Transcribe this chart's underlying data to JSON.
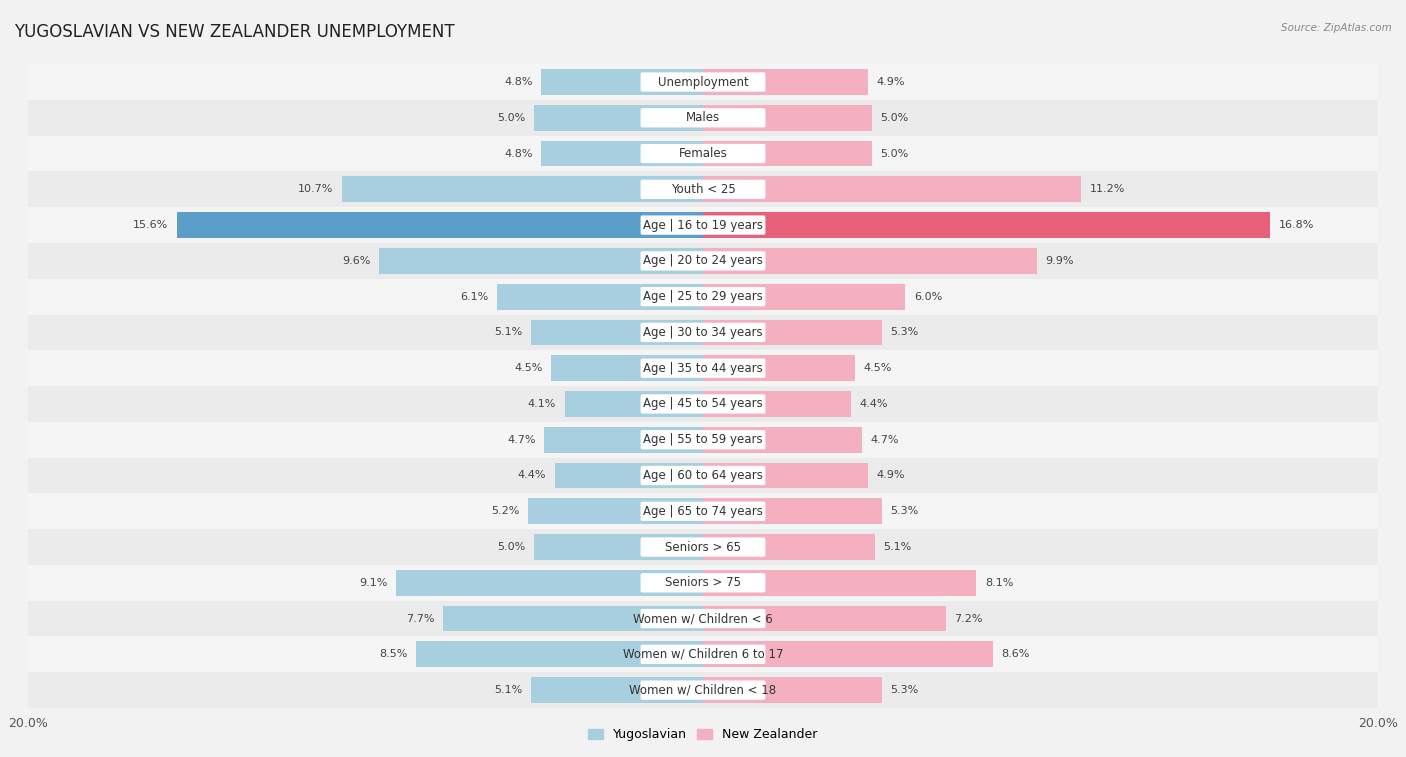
{
  "title": "YUGOSLAVIAN VS NEW ZEALANDER UNEMPLOYMENT",
  "source": "Source: ZipAtlas.com",
  "categories": [
    "Unemployment",
    "Males",
    "Females",
    "Youth < 25",
    "Age | 16 to 19 years",
    "Age | 20 to 24 years",
    "Age | 25 to 29 years",
    "Age | 30 to 34 years",
    "Age | 35 to 44 years",
    "Age | 45 to 54 years",
    "Age | 55 to 59 years",
    "Age | 60 to 64 years",
    "Age | 65 to 74 years",
    "Seniors > 65",
    "Seniors > 75",
    "Women w/ Children < 6",
    "Women w/ Children 6 to 17",
    "Women w/ Children < 18"
  ],
  "yugoslav_values": [
    4.8,
    5.0,
    4.8,
    10.7,
    15.6,
    9.6,
    6.1,
    5.1,
    4.5,
    4.1,
    4.7,
    4.4,
    5.2,
    5.0,
    9.1,
    7.7,
    8.5,
    5.1
  ],
  "nz_values": [
    4.9,
    5.0,
    5.0,
    11.2,
    16.8,
    9.9,
    6.0,
    5.3,
    4.5,
    4.4,
    4.7,
    4.9,
    5.3,
    5.1,
    8.1,
    7.2,
    8.6,
    5.3
  ],
  "yugoslav_color": "#a8cfe0",
  "nz_color": "#f4afc0",
  "yugoslav_highlight": "#5b9ec9",
  "nz_highlight": "#e8607a",
  "row_bg_odd": "#ebebeb",
  "row_bg_even": "#f5f5f5",
  "max_value": 20.0,
  "bar_height": 0.72,
  "title_fontsize": 12,
  "label_fontsize": 8.5,
  "value_fontsize": 8.0
}
